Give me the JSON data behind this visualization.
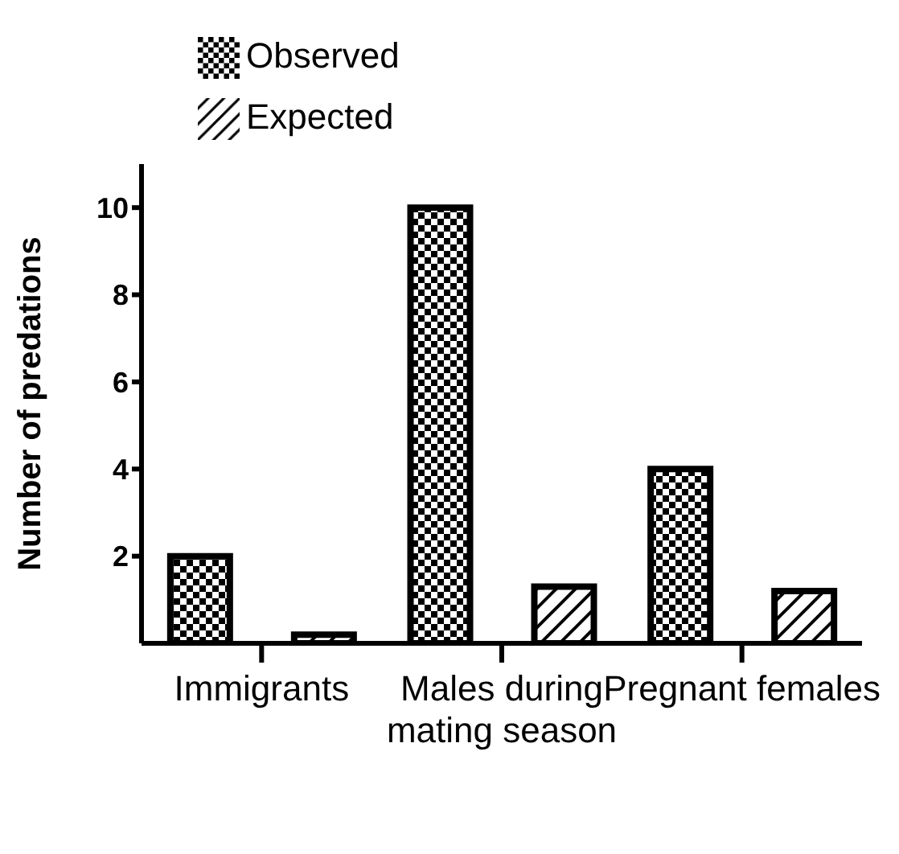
{
  "chart_data": {
    "type": "bar",
    "ylabel": "Number of predations",
    "categories": [
      "Immigrants",
      "Males during mating season",
      "Pregnant females"
    ],
    "series": [
      {
        "name": "Observed",
        "color": "#000000",
        "values": [
          2,
          10,
          4
        ]
      },
      {
        "name": "Expected",
        "color": "#000000",
        "values": [
          0.2,
          1.3,
          1.2
        ]
      }
    ],
    "ylim": [
      0,
      11
    ],
    "yticks": [
      2,
      4,
      6,
      8,
      10
    ],
    "legend": "top left",
    "grid": false
  }
}
